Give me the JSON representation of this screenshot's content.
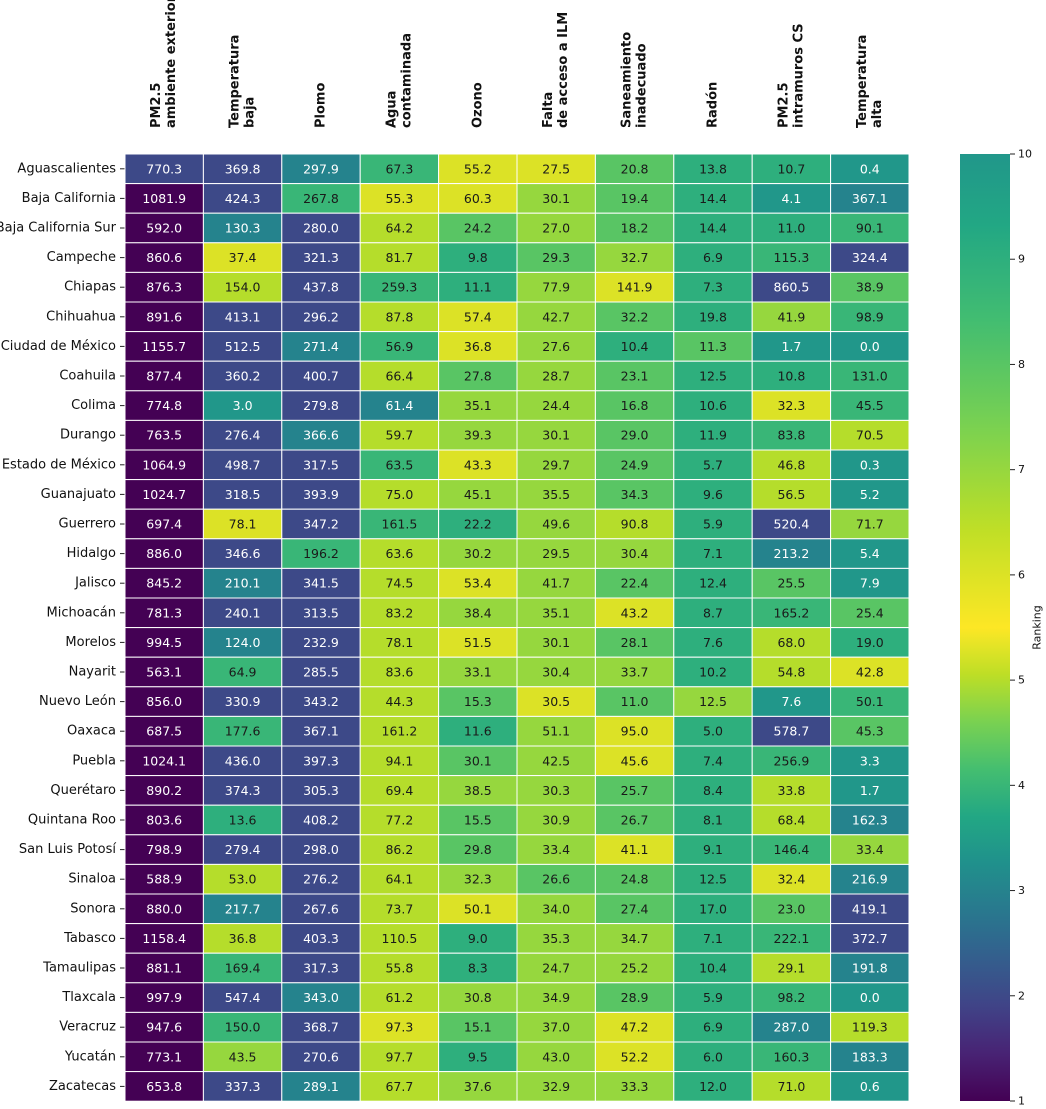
{
  "chart_data": {
    "type": "heatmap",
    "columns": [
      [
        "PM2.5",
        "ambiente exterior"
      ],
      [
        "Temperatura",
        "baja"
      ],
      [
        "Plomo"
      ],
      [
        "Agua",
        "contaminada"
      ],
      [
        "Ozono"
      ],
      [
        "Falta",
        "de acceso a ILM"
      ],
      [
        "Saneamiento",
        "inadecuado"
      ],
      [
        "Radón"
      ],
      [
        "PM2.5",
        "intramuros CS"
      ],
      [
        "Temperatura",
        "alta"
      ]
    ],
    "rows": [
      {
        "state": "Aguascalientes",
        "values": [
          770.3,
          369.8,
          297.9,
          67.3,
          55.2,
          27.5,
          20.8,
          13.8,
          10.7,
          0.4
        ],
        "ranks": [
          2,
          2,
          3,
          4,
          6,
          6,
          8,
          9,
          9,
          10
        ]
      },
      {
        "state": "Baja California",
        "values": [
          1081.9,
          424.3,
          267.8,
          55.3,
          60.3,
          30.1,
          19.4,
          14.4,
          4.1,
          367.1
        ],
        "ranks": [
          1,
          2,
          4,
          6,
          6,
          7,
          8,
          9,
          10,
          3
        ]
      },
      {
        "state": "Baja California Sur",
        "values": [
          592.0,
          130.3,
          280.0,
          64.2,
          24.2,
          27.0,
          18.2,
          14.4,
          11.0,
          90.1
        ],
        "ranks": [
          1,
          3,
          2,
          5,
          8,
          7,
          8,
          9,
          9,
          4
        ]
      },
      {
        "state": "Campeche",
        "values": [
          860.6,
          37.4,
          321.3,
          81.7,
          9.8,
          29.3,
          32.7,
          6.9,
          115.3,
          324.4
        ],
        "ranks": [
          1,
          6,
          2,
          5,
          9,
          8,
          7,
          9,
          4,
          2
        ]
      },
      {
        "state": "Chiapas",
        "values": [
          876.3,
          154.0,
          437.8,
          259.3,
          11.1,
          77.9,
          141.9,
          7.3,
          860.5,
          38.9
        ],
        "ranks": [
          1,
          5,
          2,
          4,
          9,
          7,
          6,
          9,
          2,
          8
        ]
      },
      {
        "state": "Chihuahua",
        "values": [
          891.6,
          413.1,
          296.2,
          87.8,
          57.4,
          42.7,
          32.2,
          19.8,
          41.9,
          98.9
        ],
        "ranks": [
          1,
          2,
          2,
          5,
          6,
          7,
          8,
          9,
          7,
          4
        ]
      },
      {
        "state": "Ciudad de México",
        "values": [
          1155.7,
          512.5,
          271.4,
          56.9,
          36.8,
          27.6,
          10.4,
          11.3,
          1.7,
          -0.0
        ],
        "ranks": [
          1,
          2,
          3,
          4,
          6,
          7,
          9,
          8,
          10,
          10
        ]
      },
      {
        "state": "Coahuila",
        "values": [
          877.4,
          360.2,
          400.7,
          66.4,
          27.8,
          28.7,
          23.1,
          12.5,
          10.8,
          131.0
        ],
        "ranks": [
          1,
          2,
          2,
          5,
          8,
          7,
          8,
          9,
          9,
          4
        ]
      },
      {
        "state": "Colima",
        "values": [
          774.8,
          3.0,
          279.8,
          61.4,
          35.1,
          24.4,
          16.8,
          10.6,
          32.3,
          45.5
        ],
        "ranks": [
          1,
          10,
          2,
          3,
          7,
          7,
          8,
          9,
          6,
          4
        ]
      },
      {
        "state": "Durango",
        "values": [
          763.5,
          276.4,
          366.6,
          59.7,
          39.3,
          30.1,
          29.0,
          11.9,
          83.8,
          70.5
        ],
        "ranks": [
          1,
          2,
          3,
          5,
          7,
          7,
          8,
          9,
          4,
          5
        ]
      },
      {
        "state": "Estado de México",
        "values": [
          1064.9,
          498.7,
          317.5,
          63.5,
          43.3,
          29.7,
          24.9,
          5.7,
          46.8,
          0.3
        ],
        "ranks": [
          1,
          2,
          2,
          4,
          6,
          7,
          8,
          9,
          5,
          10
        ]
      },
      {
        "state": "Guanajuato",
        "values": [
          1024.7,
          318.5,
          393.9,
          75.0,
          45.1,
          35.5,
          34.3,
          9.6,
          56.5,
          5.2
        ],
        "ranks": [
          1,
          2,
          2,
          5,
          7,
          7,
          8,
          9,
          5,
          10
        ]
      },
      {
        "state": "Guerrero",
        "values": [
          697.4,
          78.1,
          347.2,
          161.5,
          22.2,
          49.6,
          90.8,
          5.9,
          520.4,
          71.7
        ],
        "ranks": [
          1,
          6,
          2,
          4,
          9,
          7,
          5,
          9,
          2,
          7
        ]
      },
      {
        "state": "Hidalgo",
        "values": [
          886.0,
          346.6,
          196.2,
          63.6,
          30.2,
          29.5,
          30.4,
          7.1,
          213.2,
          5.4
        ],
        "ranks": [
          1,
          2,
          4,
          5,
          7,
          7,
          7,
          9,
          3,
          10
        ]
      },
      {
        "state": "Jalisco",
        "values": [
          845.2,
          210.1,
          341.5,
          74.5,
          53.4,
          41.7,
          22.4,
          12.4,
          25.5,
          7.9
        ],
        "ranks": [
          1,
          3,
          2,
          5,
          6,
          7,
          8,
          9,
          8,
          10
        ]
      },
      {
        "state": "Michoacán",
        "values": [
          781.3,
          240.1,
          313.5,
          83.2,
          38.4,
          35.1,
          43.2,
          8.7,
          165.2,
          25.4
        ],
        "ranks": [
          1,
          2,
          2,
          5,
          7,
          7,
          6,
          9,
          4,
          8
        ]
      },
      {
        "state": "Morelos",
        "values": [
          994.5,
          124.0,
          232.9,
          78.1,
          51.5,
          30.1,
          28.1,
          7.6,
          68.0,
          19.0
        ],
        "ranks": [
          1,
          3,
          2,
          5,
          6,
          7,
          8,
          9,
          5,
          9
        ]
      },
      {
        "state": "Nayarit",
        "values": [
          563.1,
          64.9,
          285.5,
          83.6,
          33.1,
          30.4,
          33.7,
          10.2,
          54.8,
          42.8
        ],
        "ranks": [
          1,
          4,
          2,
          5,
          7,
          7,
          7,
          9,
          5,
          6
        ]
      },
      {
        "state": "Nuevo León",
        "values": [
          856.0,
          330.9,
          343.2,
          44.3,
          15.3,
          30.5,
          11.0,
          12.5,
          7.6,
          50.1
        ],
        "ranks": [
          1,
          2,
          2,
          5,
          8,
          6,
          8,
          7,
          10,
          4
        ]
      },
      {
        "state": "Oaxaca",
        "values": [
          687.5,
          177.6,
          367.1,
          161.2,
          11.6,
          51.1,
          95.0,
          5.0,
          578.7,
          45.3
        ],
        "ranks": [
          1,
          4,
          2,
          5,
          9,
          7,
          6,
          9,
          2,
          8
        ]
      },
      {
        "state": "Puebla",
        "values": [
          1024.1,
          436.0,
          397.3,
          94.1,
          30.1,
          42.5,
          45.6,
          7.4,
          256.9,
          3.3
        ],
        "ranks": [
          1,
          2,
          2,
          5,
          8,
          7,
          6,
          9,
          4,
          10
        ]
      },
      {
        "state": "Querétaro",
        "values": [
          890.2,
          374.3,
          305.3,
          69.4,
          38.5,
          30.3,
          25.7,
          8.4,
          33.8,
          1.7
        ],
        "ranks": [
          1,
          2,
          2,
          5,
          7,
          7,
          8,
          9,
          5,
          10
        ]
      },
      {
        "state": "Quintana Roo",
        "values": [
          803.6,
          13.6,
          408.2,
          77.2,
          15.5,
          30.9,
          26.7,
          8.1,
          68.4,
          162.3
        ],
        "ranks": [
          1,
          9,
          2,
          5,
          8,
          7,
          8,
          9,
          5,
          3
        ]
      },
      {
        "state": "San Luis Potosí",
        "values": [
          798.9,
          279.4,
          298.0,
          86.2,
          29.8,
          33.4,
          41.1,
          9.1,
          146.4,
          33.4
        ],
        "ranks": [
          1,
          2,
          2,
          5,
          8,
          7,
          6,
          9,
          4,
          7
        ]
      },
      {
        "state": "Sinaloa",
        "values": [
          588.9,
          53.0,
          276.2,
          64.1,
          32.3,
          26.6,
          24.8,
          12.5,
          32.4,
          216.9
        ],
        "ranks": [
          1,
          5,
          2,
          5,
          7,
          8,
          8,
          9,
          6,
          3
        ]
      },
      {
        "state": "Sonora",
        "values": [
          880.0,
          217.7,
          267.6,
          73.7,
          50.1,
          34.0,
          27.4,
          17.0,
          23.0,
          419.1
        ],
        "ranks": [
          1,
          3,
          2,
          5,
          6,
          7,
          8,
          9,
          8,
          2
        ]
      },
      {
        "state": "Tabasco",
        "values": [
          1158.4,
          36.8,
          403.3,
          110.5,
          9.0,
          35.3,
          34.7,
          7.1,
          222.1,
          372.7
        ],
        "ranks": [
          1,
          5,
          2,
          5,
          9,
          7,
          7,
          9,
          4,
          2
        ]
      },
      {
        "state": "Tamaulipas",
        "values": [
          881.1,
          169.4,
          317.3,
          55.8,
          8.3,
          24.7,
          25.2,
          10.4,
          29.1,
          191.8
        ],
        "ranks": [
          1,
          4,
          2,
          5,
          9,
          7,
          7,
          9,
          5,
          3
        ]
      },
      {
        "state": "Tlaxcala",
        "values": [
          997.9,
          547.4,
          343.0,
          61.2,
          30.8,
          34.9,
          28.9,
          5.9,
          98.2,
          -0.0
        ],
        "ranks": [
          1,
          2,
          3,
          5,
          7,
          7,
          8,
          9,
          4,
          10
        ]
      },
      {
        "state": "Veracruz",
        "values": [
          947.6,
          150.0,
          368.7,
          97.3,
          15.1,
          37.0,
          47.2,
          6.9,
          287.0,
          119.3
        ],
        "ranks": [
          1,
          4,
          2,
          6,
          8,
          7,
          6,
          9,
          3,
          5
        ]
      },
      {
        "state": "Yucatán",
        "values": [
          773.1,
          43.5,
          270.6,
          97.7,
          9.5,
          43.0,
          52.2,
          6.0,
          160.3,
          183.3
        ],
        "ranks": [
          1,
          7,
          2,
          5,
          9,
          7,
          6,
          9,
          4,
          3
        ]
      },
      {
        "state": "Zacatecas",
        "values": [
          653.8,
          337.3,
          289.1,
          67.7,
          37.6,
          32.9,
          33.3,
          12.0,
          71.0,
          0.6
        ],
        "ranks": [
          1,
          2,
          3,
          5,
          7,
          7,
          7,
          9,
          5,
          10
        ]
      }
    ],
    "colorbar": {
      "label": "Ranking",
      "min": 1,
      "max": 10,
      "ticks": [
        1,
        2,
        3,
        4,
        5,
        6,
        7,
        8,
        9,
        10
      ],
      "colormap": "viridis"
    }
  }
}
